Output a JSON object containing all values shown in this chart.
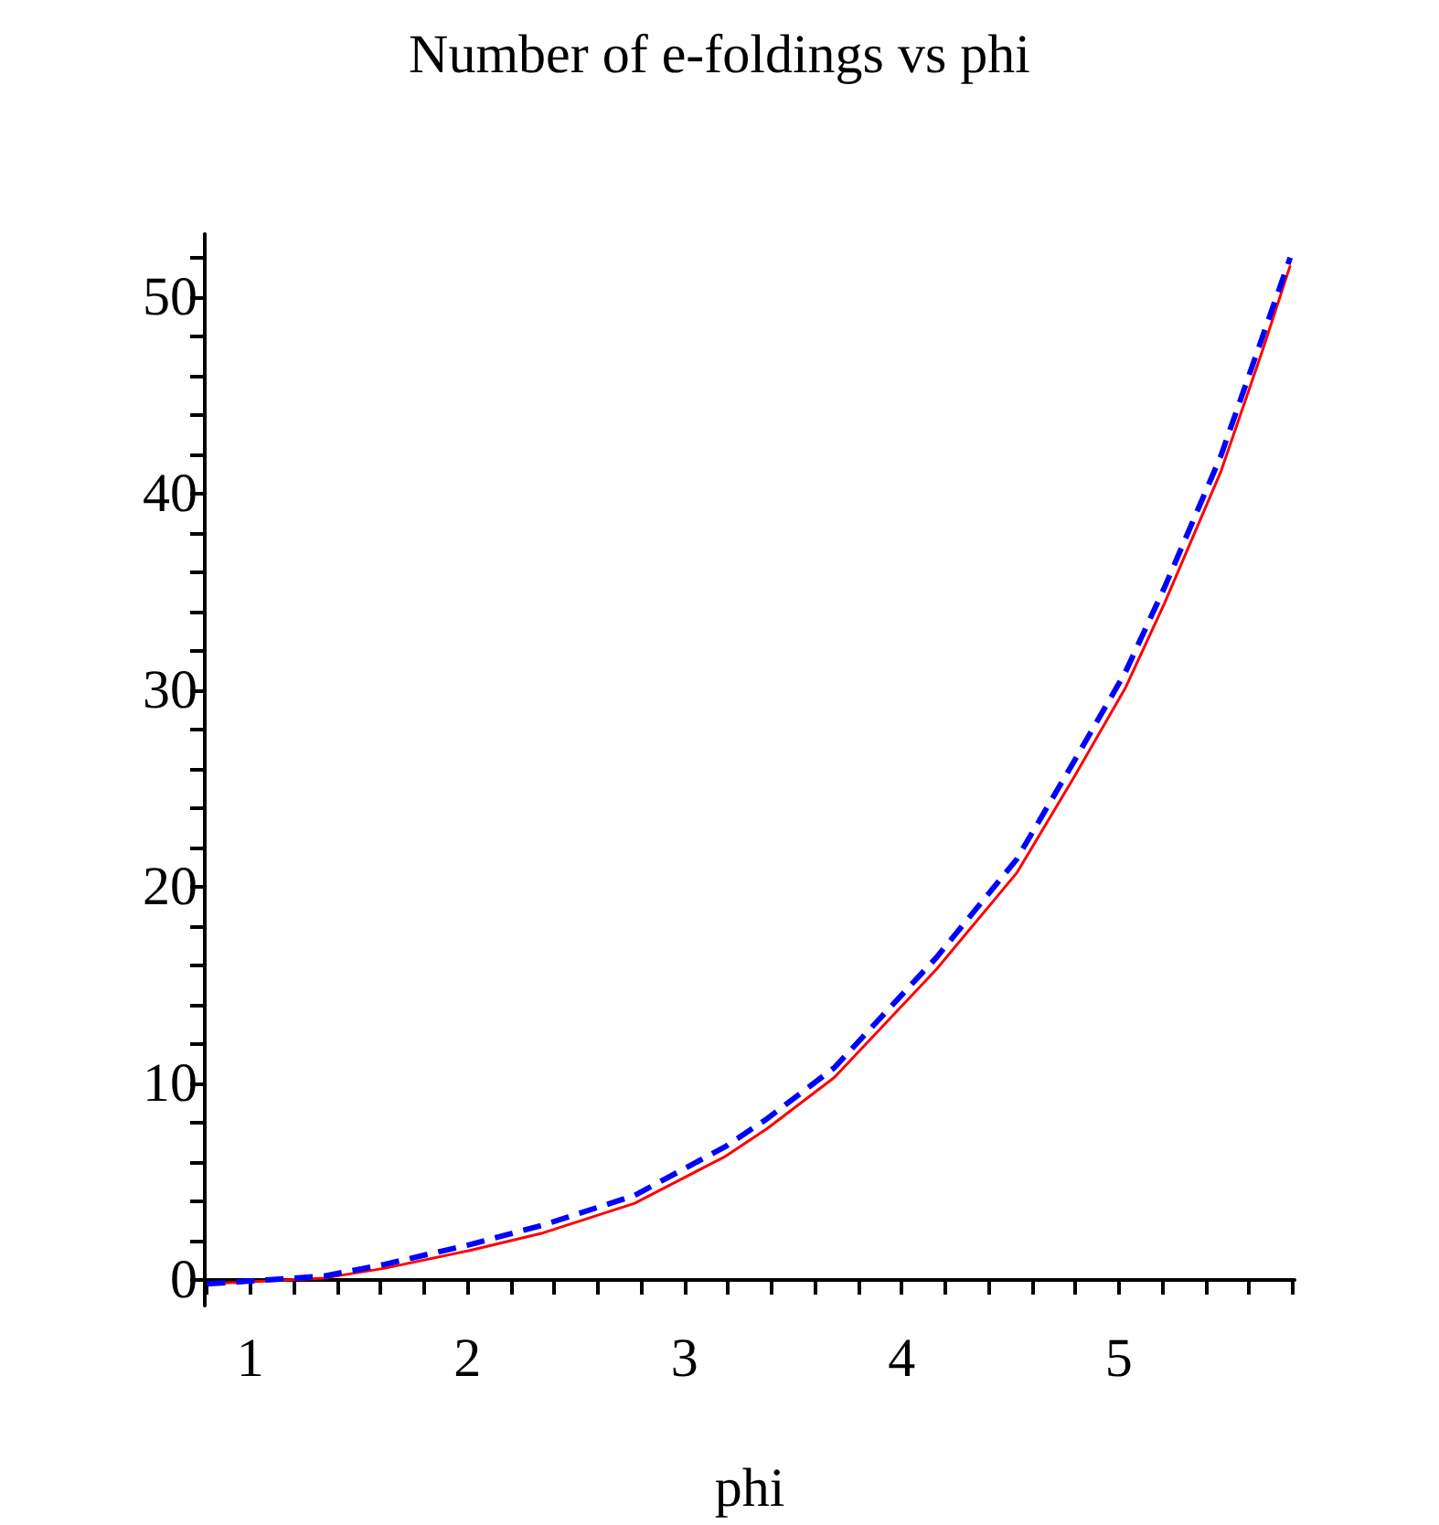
{
  "chart_data": {
    "type": "line",
    "title": "Number of e-foldings vs phi",
    "xlabel": "phi",
    "xlim": [
      0.79,
      5.81
    ],
    "xticks": [
      {
        "value": 0.8,
        "label": null
      },
      1,
      {
        "value": 1.2,
        "label": null
      },
      {
        "value": 1.4,
        "label": null
      },
      {
        "value": 1.6,
        "label": null
      },
      {
        "value": 1.8,
        "label": null
      },
      2,
      {
        "value": 2.2,
        "label": null
      },
      {
        "value": 2.4,
        "label": null
      },
      {
        "value": 2.6,
        "label": null
      },
      {
        "value": 2.8,
        "label": null
      },
      3,
      {
        "value": 3.2,
        "label": null
      },
      {
        "value": 3.4,
        "label": null
      },
      {
        "value": 3.6,
        "label": null
      },
      {
        "value": 3.8,
        "label": null
      },
      4,
      {
        "value": 4.2,
        "label": null
      },
      {
        "value": 4.4,
        "label": null
      },
      {
        "value": 4.6,
        "label": null
      },
      {
        "value": 4.8,
        "label": null
      },
      5,
      {
        "value": 5.2,
        "label": null
      },
      {
        "value": 5.4,
        "label": null
      },
      {
        "value": 5.6,
        "label": null
      },
      {
        "value": 5.8,
        "label": null
      }
    ],
    "ylim": [
      -1.3,
      53.2
    ],
    "yticks": [
      0,
      {
        "value": 2,
        "label": null
      },
      {
        "value": 4,
        "label": null
      },
      {
        "value": 6,
        "label": null
      },
      {
        "value": 8,
        "label": null
      },
      10,
      {
        "value": 12,
        "label": null
      },
      {
        "value": 14,
        "label": null
      },
      {
        "value": 16,
        "label": null
      },
      {
        "value": 18,
        "label": null
      },
      20,
      {
        "value": 22,
        "label": null
      },
      {
        "value": 24,
        "label": null
      },
      {
        "value": 26,
        "label": null
      },
      {
        "value": 28,
        "label": null
      },
      30,
      {
        "value": 32,
        "label": null
      },
      {
        "value": 34,
        "label": null
      },
      {
        "value": 36,
        "label": null
      },
      {
        "value": 38,
        "label": null
      },
      40,
      {
        "value": 42,
        "label": null
      },
      {
        "value": 44,
        "label": null
      },
      {
        "value": 46,
        "label": null
      },
      {
        "value": 48,
        "label": null
      },
      50,
      {
        "value": 52,
        "label": null
      }
    ],
    "x": [
      0.8,
      1.34,
      1.62,
      2.01,
      2.35,
      2.77,
      3.19,
      3.38,
      3.69,
      4.16,
      4.53,
      4.79,
      5.03,
      5.21,
      5.47,
      5.66,
      5.79
    ],
    "series": [
      {
        "color": "#ff0000",
        "line_style": "solid",
        "values": [
          -0.2,
          0.1,
          0.6,
          1.5,
          2.4,
          3.9,
          6.3,
          7.7,
          10.3,
          15.8,
          20.7,
          25.5,
          30.1,
          34.4,
          41.1,
          47.2,
          51.6
        ]
      },
      {
        "color": "#0000ff",
        "line_style": "dashed",
        "values": [
          -0.2,
          0.2,
          0.8,
          1.8,
          2.8,
          4.3,
          6.8,
          8.2,
          10.8,
          16.4,
          21.4,
          26.3,
          30.9,
          35.2,
          41.9,
          47.9,
          52.0
        ]
      }
    ],
    "grid": false,
    "marker": "none"
  }
}
